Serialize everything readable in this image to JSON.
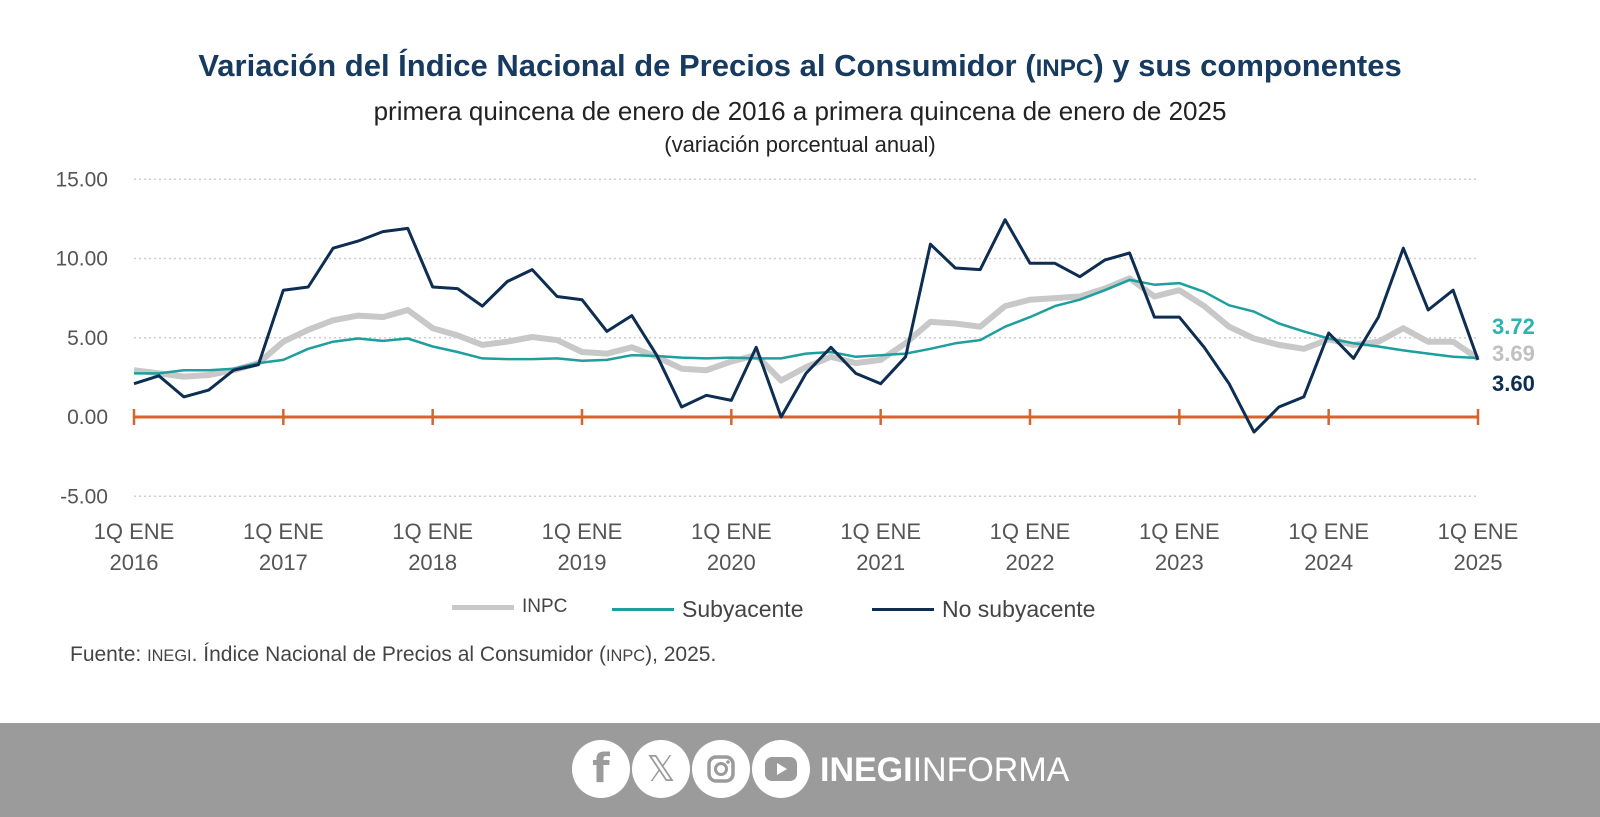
{
  "header": {
    "title_pre": "Variación del Índice Nacional de Precios al Consumidor (",
    "title_abbr": "INPC",
    "title_post": ") y sus componentes",
    "subtitle": "primera quincena de enero de 2016 a primera quincena de enero de 2025",
    "unit_note": "(variación porcentual anual)"
  },
  "chart_data": {
    "type": "line",
    "title": "Variación del Índice Nacional de Precios al Consumidor (INPC) y sus componentes",
    "ylabel": "",
    "xlabel": "",
    "ylim": [
      -5,
      15
    ],
    "yticks": [
      "15.00",
      "10.00",
      "5.00",
      "0.00",
      "-5.00"
    ],
    "ytick_values": [
      15,
      10,
      5,
      0,
      -5
    ],
    "grid": "horizontal dotted",
    "xticks": [
      [
        "1Q ENE",
        "2016"
      ],
      [
        "1Q ENE",
        "2017"
      ],
      [
        "1Q ENE",
        "2018"
      ],
      [
        "1Q ENE",
        "2019"
      ],
      [
        "1Q ENE",
        "2020"
      ],
      [
        "1Q ENE",
        "2021"
      ],
      [
        "1Q ENE",
        "2022"
      ],
      [
        "1Q ENE",
        "2023"
      ],
      [
        "1Q ENE",
        "2024"
      ],
      [
        "1Q ENE",
        "2025"
      ]
    ],
    "x": [
      "2016-01",
      "2016-03",
      "2016-05",
      "2016-07",
      "2016-09",
      "2016-11",
      "2017-01",
      "2017-03",
      "2017-05",
      "2017-07",
      "2017-09",
      "2017-11",
      "2018-01",
      "2018-03",
      "2018-05",
      "2018-07",
      "2018-09",
      "2018-11",
      "2019-01",
      "2019-03",
      "2019-05",
      "2019-07",
      "2019-09",
      "2019-11",
      "2020-01",
      "2020-03",
      "2020-05",
      "2020-07",
      "2020-09",
      "2020-11",
      "2021-01",
      "2021-03",
      "2021-05",
      "2021-07",
      "2021-09",
      "2021-11",
      "2022-01",
      "2022-03",
      "2022-05",
      "2022-07",
      "2022-09",
      "2022-11",
      "2023-01",
      "2023-03",
      "2023-05",
      "2023-07",
      "2023-09",
      "2023-11",
      "2024-01",
      "2024-03",
      "2024-05",
      "2024-07",
      "2024-09",
      "2024-11",
      "2025-01"
    ],
    "series": [
      {
        "name": "INPC",
        "color": "#c8c8c8",
        "end_label": "3.69",
        "values": [
          2.95,
          2.75,
          2.55,
          2.65,
          2.95,
          3.4,
          4.75,
          5.5,
          6.1,
          6.4,
          6.3,
          6.75,
          5.6,
          5.15,
          4.55,
          4.75,
          5.05,
          4.85,
          4.1,
          4.0,
          4.4,
          3.8,
          3.05,
          2.95,
          3.5,
          3.9,
          2.3,
          3.15,
          3.8,
          3.4,
          3.6,
          4.65,
          6.0,
          5.9,
          5.7,
          7.0,
          7.4,
          7.5,
          7.6,
          8.1,
          8.75,
          7.6,
          8.0,
          7.0,
          5.7,
          4.95,
          4.55,
          4.3,
          4.9,
          4.55,
          4.75,
          5.6,
          4.75,
          4.75,
          3.69
        ]
      },
      {
        "name": "Subyacente",
        "color": "#1f9e9e",
        "end_label": "3.72",
        "values": [
          2.75,
          2.75,
          2.95,
          2.95,
          3.05,
          3.4,
          3.6,
          4.3,
          4.75,
          4.95,
          4.8,
          4.95,
          4.45,
          4.1,
          3.7,
          3.65,
          3.65,
          3.7,
          3.55,
          3.6,
          3.9,
          3.85,
          3.75,
          3.7,
          3.75,
          3.7,
          3.7,
          4.0,
          4.1,
          3.8,
          3.9,
          4.0,
          4.3,
          4.65,
          4.85,
          5.7,
          6.3,
          7.0,
          7.4,
          8.0,
          8.65,
          8.35,
          8.45,
          7.9,
          7.05,
          6.65,
          5.9,
          5.4,
          4.95,
          4.65,
          4.45,
          4.2,
          4.0,
          3.8,
          3.72
        ]
      },
      {
        "name": "No subyacente",
        "color": "#0d2d52",
        "end_label": "3.60",
        "values": [
          2.1,
          2.6,
          1.27,
          1.7,
          2.95,
          3.3,
          8.0,
          8.2,
          10.65,
          11.1,
          11.7,
          11.9,
          8.2,
          8.1,
          7.0,
          8.55,
          9.3,
          7.6,
          7.4,
          5.4,
          6.4,
          3.9,
          0.63,
          1.37,
          1.05,
          4.4,
          0.0,
          2.75,
          4.4,
          2.75,
          2.1,
          3.8,
          10.9,
          9.4,
          9.3,
          12.45,
          9.7,
          9.7,
          8.85,
          9.9,
          10.35,
          6.3,
          6.3,
          4.4,
          2.1,
          -0.95,
          0.63,
          1.27,
          5.3,
          3.7,
          6.3,
          10.65,
          6.75,
          8.0,
          3.6
        ]
      }
    ],
    "end_label_colors": {
      "INPC": "#c0c0c0",
      "Subyacente": "#2bb3b0",
      "No subyacente": "#0d2d52"
    },
    "zero_axis_color": "#d9632a",
    "legend": "bottom-center"
  },
  "legend": {
    "items": [
      {
        "label": "INPC",
        "color": "#c8c8c8"
      },
      {
        "label": "Subyacente",
        "color": "#1f9e9e"
      },
      {
        "label": "No subyacente",
        "color": "#0d2d52"
      }
    ]
  },
  "source": {
    "pre": "Fuente: ",
    "abbr1": "INEGI",
    "mid": ". Índice Nacional de Precios al Consumidor (",
    "abbr2": "INPC",
    "post": "), 2025."
  },
  "footer": {
    "icons": [
      "facebook-icon",
      "x-icon",
      "instagram-icon",
      "youtube-icon"
    ],
    "brand_bold": "INEGI",
    "brand_light": "INFORMA",
    "background": "#9b9b9b"
  }
}
